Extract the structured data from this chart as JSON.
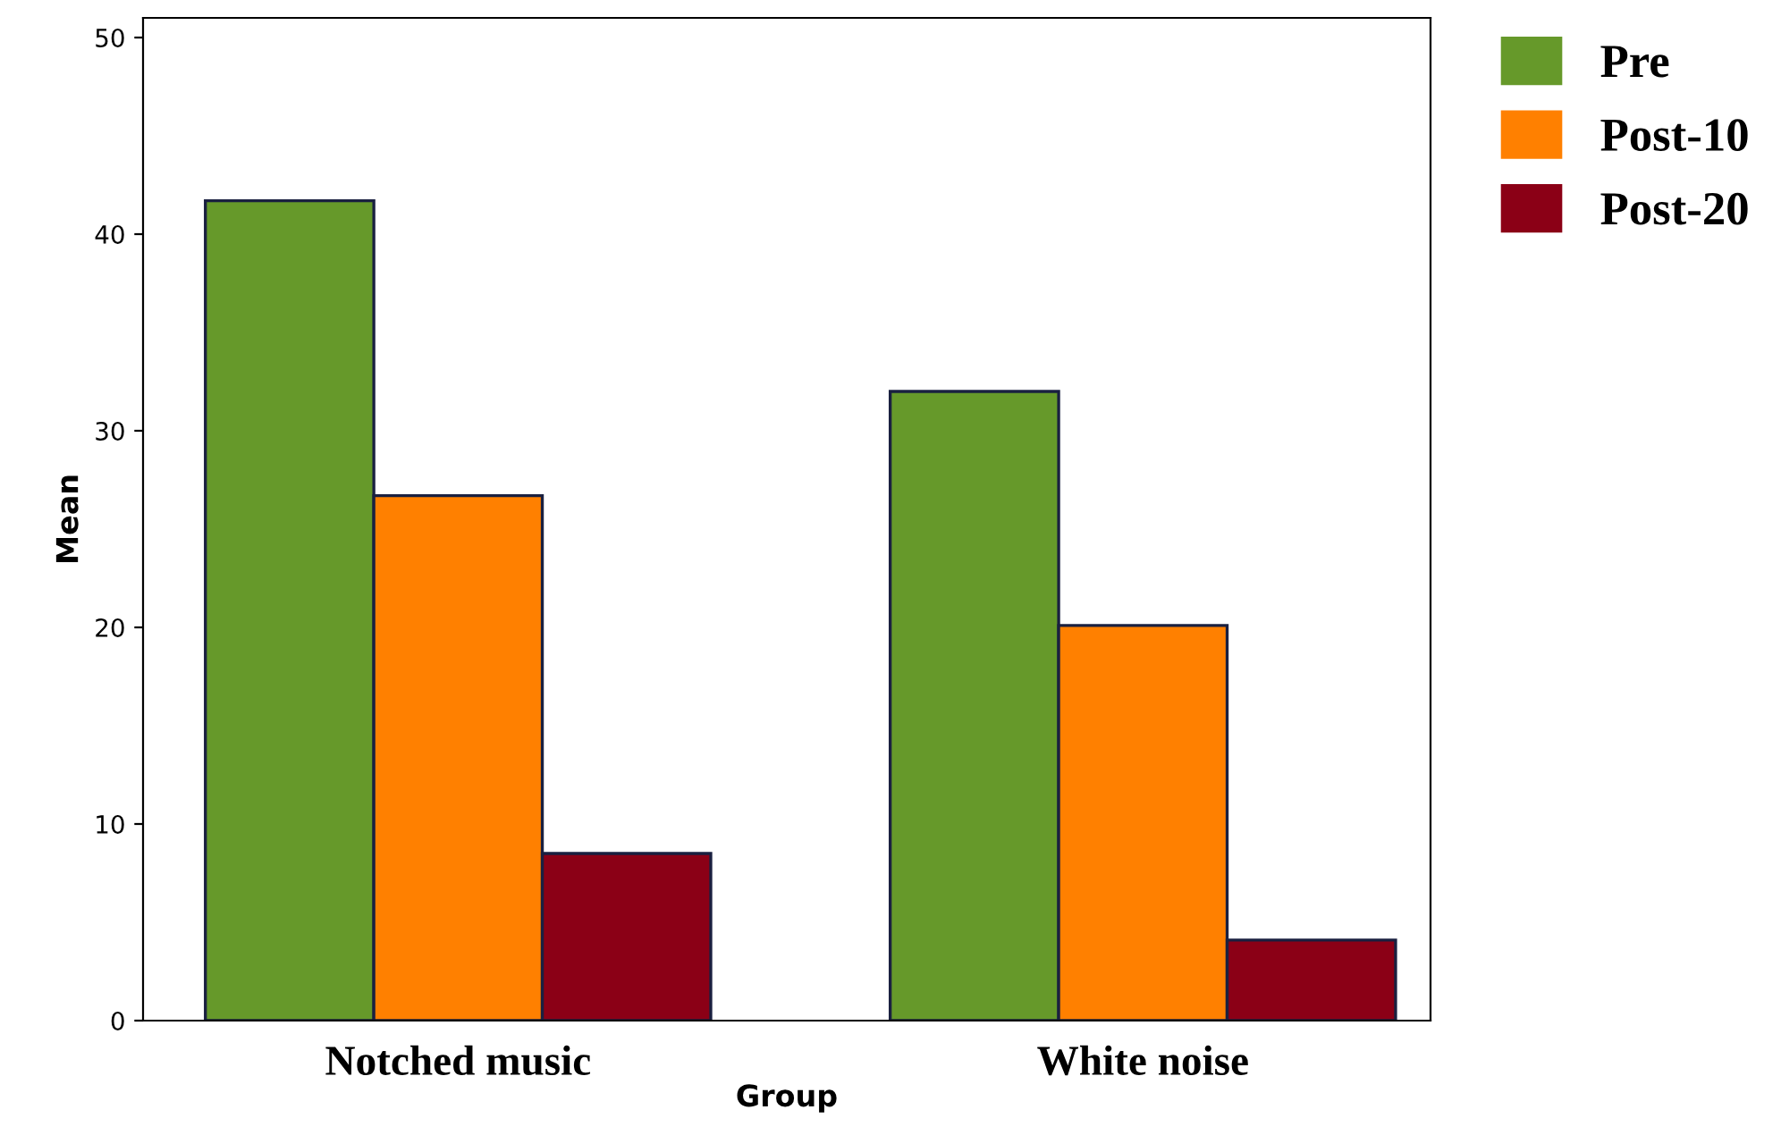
{
  "chart_data": {
    "type": "bar",
    "xlabel": "Group",
    "ylabel": "Mean",
    "categories": [
      "Notched music",
      "White noise"
    ],
    "series": [
      {
        "name": "Pre",
        "color": "#66992a",
        "values": [
          41.7,
          32.0
        ]
      },
      {
        "name": "Post-10",
        "color": "#ff8000",
        "values": [
          26.7,
          20.1
        ]
      },
      {
        "name": "Post-20",
        "color": "#8b0016",
        "values": [
          8.5,
          4.1
        ]
      }
    ],
    "ylim": [
      0,
      51
    ],
    "yticks": [
      0,
      10,
      20,
      30,
      40,
      50
    ],
    "grid": false,
    "legend": "top right"
  }
}
